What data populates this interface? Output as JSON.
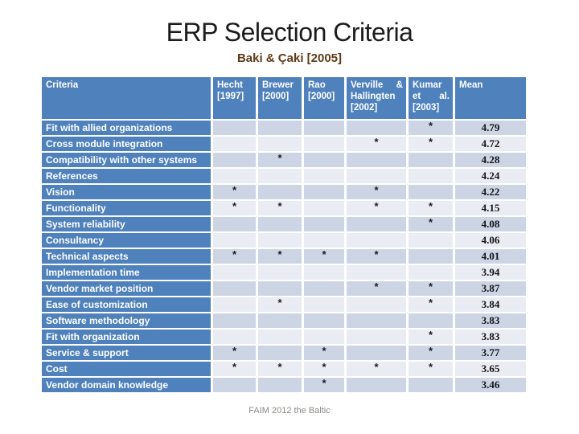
{
  "slide": {
    "title": "ERP Selection Criteria",
    "subtitle": "Baki & Çaki [2005]",
    "footer": "FAIM 2012 the Baltic"
  },
  "colors": {
    "header_blue": "#4F81BD",
    "band_dark": "#CDD5E5",
    "band_light": "#E9ECF3",
    "subtitle_brown": "#5f3a17",
    "footer_gray": "#8e8a85"
  },
  "table": {
    "mark_symbol": "*",
    "columns": [
      "Criteria",
      "Hecht [1997]",
      "Brewer [2000]",
      "Rao [2000]",
      "Verville & Hallingten [2002]",
      "Kumar et al. [2003]",
      "Mean"
    ],
    "rows": [
      {
        "criteria": "Fit with allied organizations",
        "marks": [
          "",
          "",
          "",
          "",
          "*"
        ],
        "mean": "4.79"
      },
      {
        "criteria": "Cross module integration",
        "marks": [
          "",
          "",
          "",
          "*",
          "*"
        ],
        "mean": "4.72"
      },
      {
        "criteria": "Compatibility with other systems",
        "marks": [
          "",
          "*",
          "",
          "",
          ""
        ],
        "mean": "4.28"
      },
      {
        "criteria": "References",
        "marks": [
          "",
          "",
          "",
          "",
          ""
        ],
        "mean": "4.24"
      },
      {
        "criteria": "Vision",
        "marks": [
          "*",
          "",
          "",
          "*",
          ""
        ],
        "mean": "4.22"
      },
      {
        "criteria": "Functionality",
        "marks": [
          "*",
          "*",
          "",
          "*",
          "*"
        ],
        "mean": "4.15"
      },
      {
        "criteria": "System reliability",
        "marks": [
          "",
          "",
          "",
          "",
          "*"
        ],
        "mean": "4.08"
      },
      {
        "criteria": "Consultancy",
        "marks": [
          "",
          "",
          "",
          "",
          ""
        ],
        "mean": "4.06"
      },
      {
        "criteria": "Technical aspects",
        "marks": [
          "*",
          "*",
          "*",
          "*",
          ""
        ],
        "mean": "4.01"
      },
      {
        "criteria": "Implementation time",
        "marks": [
          "",
          "",
          "",
          "",
          ""
        ],
        "mean": "3.94"
      },
      {
        "criteria": "Vendor market position",
        "marks": [
          "",
          "",
          "",
          "*",
          "*"
        ],
        "mean": "3.87"
      },
      {
        "criteria": "Ease of customization",
        "marks": [
          "",
          "*",
          "",
          "",
          "*"
        ],
        "mean": "3.84"
      },
      {
        "criteria": "Software methodology",
        "marks": [
          "",
          "",
          "",
          "",
          ""
        ],
        "mean": "3.83"
      },
      {
        "criteria": "Fit with organization",
        "marks": [
          "",
          "",
          "",
          "",
          "*"
        ],
        "mean": "3.83"
      },
      {
        "criteria": "Service & support",
        "marks": [
          "*",
          "",
          "*",
          "",
          "*"
        ],
        "mean": "3.77"
      },
      {
        "criteria": "Cost",
        "marks": [
          "*",
          "*",
          "*",
          "*",
          "*"
        ],
        "mean": "3.65"
      },
      {
        "criteria": "Vendor domain knowledge",
        "marks": [
          "",
          "",
          "*",
          "",
          ""
        ],
        "mean": "3.46"
      }
    ]
  },
  "chart_data": {
    "type": "table",
    "title": "ERP Selection Criteria — Baki & Çaki [2005]",
    "columns": [
      "Criteria",
      "Hecht [1997]",
      "Brewer [2000]",
      "Rao [2000]",
      "Verville & Hallingten [2002]",
      "Kumar et al. [2003]",
      "Mean"
    ],
    "means": [
      4.79,
      4.72,
      4.28,
      4.24,
      4.22,
      4.15,
      4.08,
      4.06,
      4.01,
      3.94,
      3.87,
      3.84,
      3.83,
      3.83,
      3.77,
      3.65,
      3.46
    ]
  }
}
